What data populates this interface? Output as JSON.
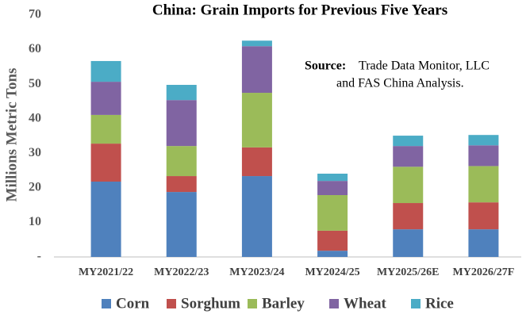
{
  "chart_data": {
    "type": "stacked_bar",
    "title": "China: Grain Imports for Previous Five Years",
    "y_label": "Millions Metric Tons",
    "annotation": {
      "label": "Source:",
      "lines": [
        "Trade Data Monitor, LLC",
        "and FAS China Analysis."
      ]
    },
    "categories": [
      "MY2021/22",
      "MY2022/23",
      "MY2023/24",
      "MY2024/25",
      "MY2025/26E",
      "MY2026/27F"
    ],
    "series": [
      {
        "name": "Corn",
        "color": "#4f81bd",
        "values": [
          21.8,
          18.8,
          23.4,
          1.8,
          8.0,
          8.0
        ]
      },
      {
        "name": "Sorghum",
        "color": "#c0504d",
        "values": [
          11.0,
          4.6,
          8.3,
          5.8,
          7.6,
          7.8
        ]
      },
      {
        "name": "Barley",
        "color": "#9bbb59",
        "values": [
          8.3,
          8.7,
          15.8,
          10.3,
          10.5,
          10.5
        ]
      },
      {
        "name": "Wheat",
        "color": "#8064a2",
        "values": [
          9.6,
          13.3,
          13.5,
          4.1,
          6.0,
          6.0
        ]
      },
      {
        "name": "Rice",
        "color": "#4bacc6",
        "values": [
          6.0,
          4.4,
          1.6,
          2.1,
          3.0,
          3.0
        ]
      }
    ],
    "ylim": [
      0,
      70
    ],
    "yticks": [
      {
        "value": 0,
        "label": "-"
      },
      10,
      20,
      30,
      40,
      50,
      60,
      70
    ],
    "grid": false
  }
}
